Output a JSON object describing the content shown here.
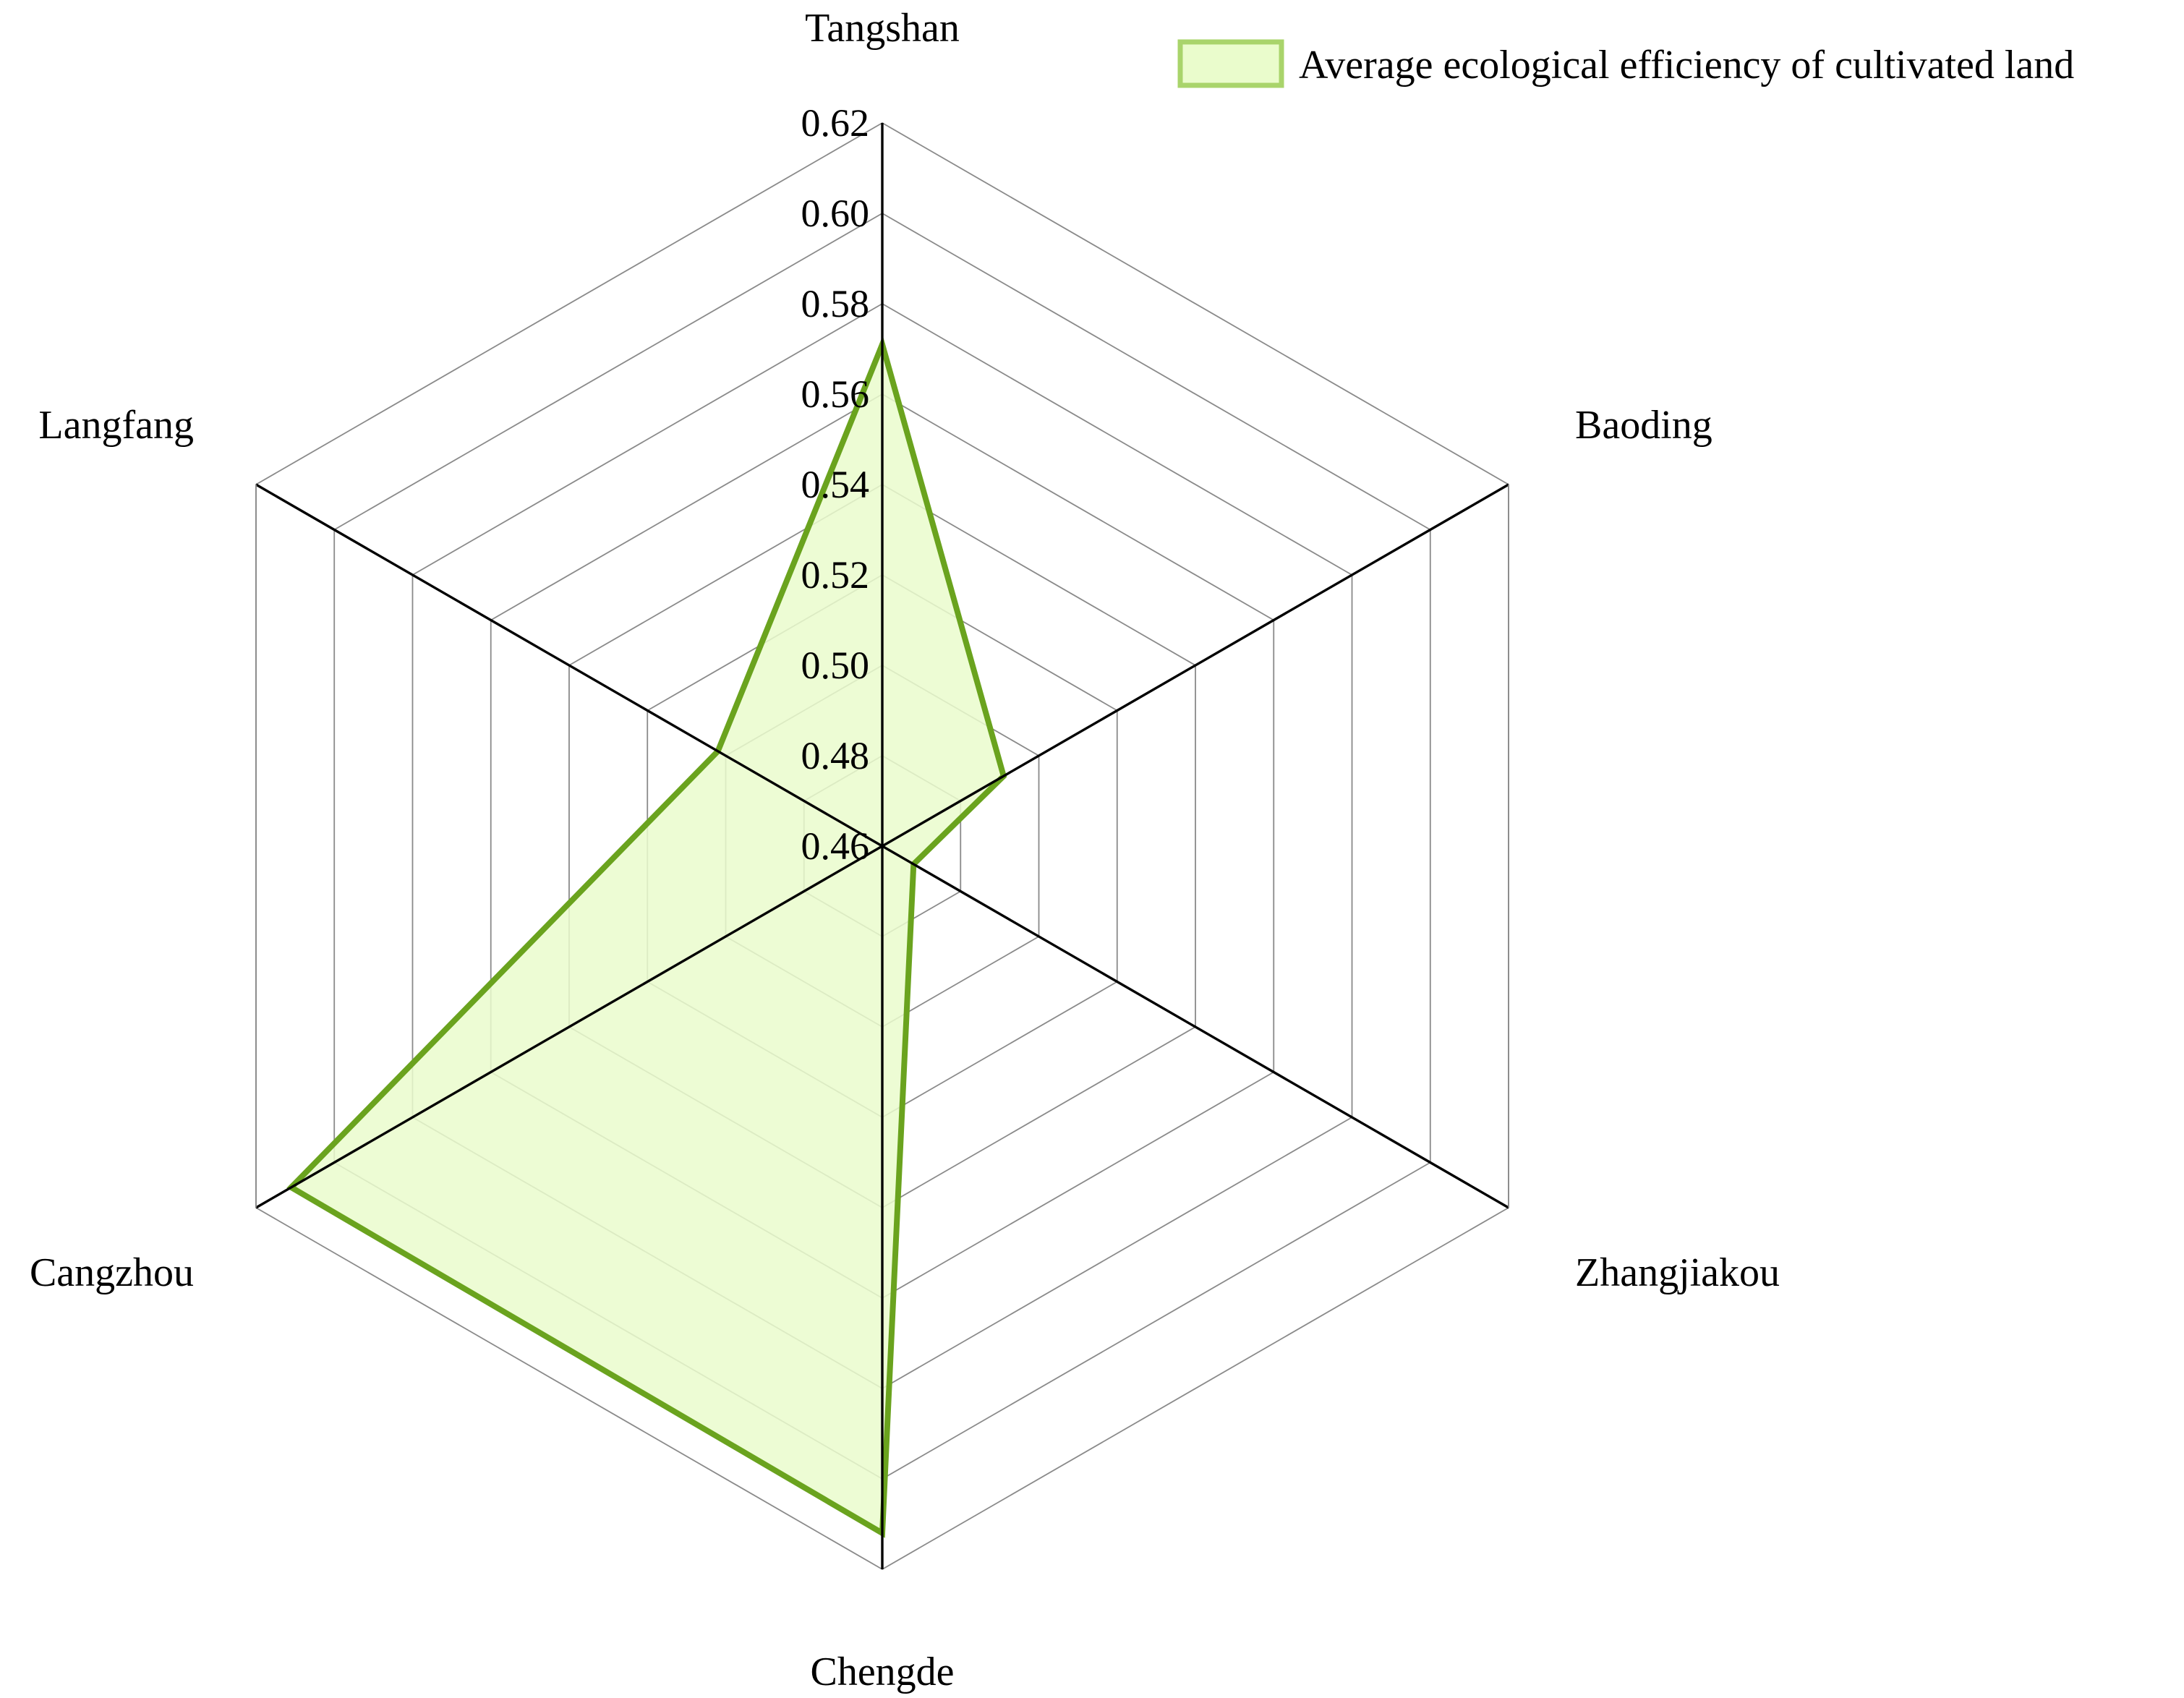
{
  "chart_data": {
    "type": "radar",
    "title": "",
    "categories": [
      "Tangshan",
      "Baoding",
      "Zhangjiakou",
      "Chengde",
      "Cangzhou",
      "Langfang"
    ],
    "series": [
      {
        "name": "Average ecological efficiency of cultivated land",
        "values": [
          0.571,
          0.491,
          0.468,
          0.612,
          0.611,
          0.502
        ]
      }
    ],
    "rlim": [
      0.46,
      0.62
    ],
    "ticks": [
      "0.46",
      "0.48",
      "0.50",
      "0.52",
      "0.54",
      "0.56",
      "0.58",
      "0.60",
      "0.62"
    ],
    "tick_values": [
      0.46,
      0.48,
      0.5,
      0.52,
      0.54,
      0.56,
      0.58,
      0.6,
      0.62
    ],
    "grid": true,
    "legend_position": "top-right",
    "colors": {
      "line": "#6aa31e",
      "fill": "#eafccc",
      "legend_border": "#a9d46b",
      "axis": "#000000",
      "grid": "#8a8a8a"
    }
  }
}
